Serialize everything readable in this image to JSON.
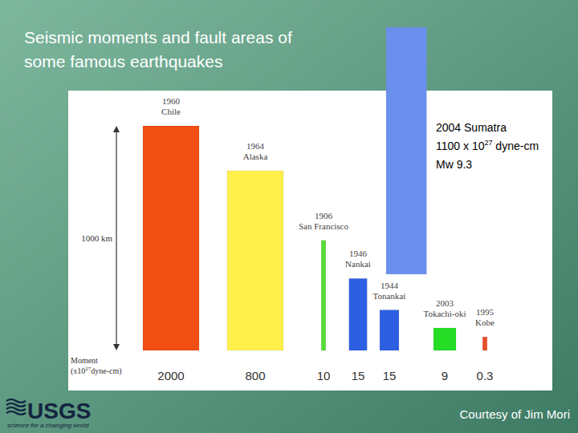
{
  "chart_data": {
    "type": "bar",
    "title": "Seismic moments and fault areas of some famous earthquakes",
    "categories": [
      "1960 Chile",
      "1964 Alaska",
      "1906 San Francisco",
      "1946 Nankai",
      "1944 Tonankai",
      "2003 Tokachi-oki",
      "1995 Kobe"
    ],
    "values": [
      2000,
      800,
      10,
      15,
      15,
      9,
      0.3
    ],
    "colors": [
      "#f04e12",
      "#fff04c",
      "#58dc38",
      "#2d5fe2",
      "#2d5fe2",
      "#26dd26",
      "#e8502a"
    ],
    "fault_length_km": [
      1000,
      800,
      490,
      320,
      180,
      100,
      60
    ],
    "fault_width_km": [
      250,
      250,
      20,
      80,
      85,
      100,
      20
    ],
    "value_axis_label": {
      "name": "Moment",
      "unit_base": "(x10",
      "unit_exponent": "27",
      "unit_suffix": "dyne-cm)"
    },
    "scale_bar": {
      "value": 1000,
      "label": "1000 km"
    },
    "highlight": {
      "category": "2004 Sumatra",
      "value": 1100,
      "unit_multiplier": " x 10",
      "unit_exponent": "27",
      "unit": " dyne-cm",
      "magnitude": "Mw 9.3",
      "fault_length_km": 1100,
      "fault_width_km": 180,
      "color": "#6b8fec"
    },
    "tick_labels": false
  },
  "footer": {
    "logo": "USGS",
    "tagline": "science for a changing world",
    "credit": "Courtesy of Jim Mori"
  }
}
